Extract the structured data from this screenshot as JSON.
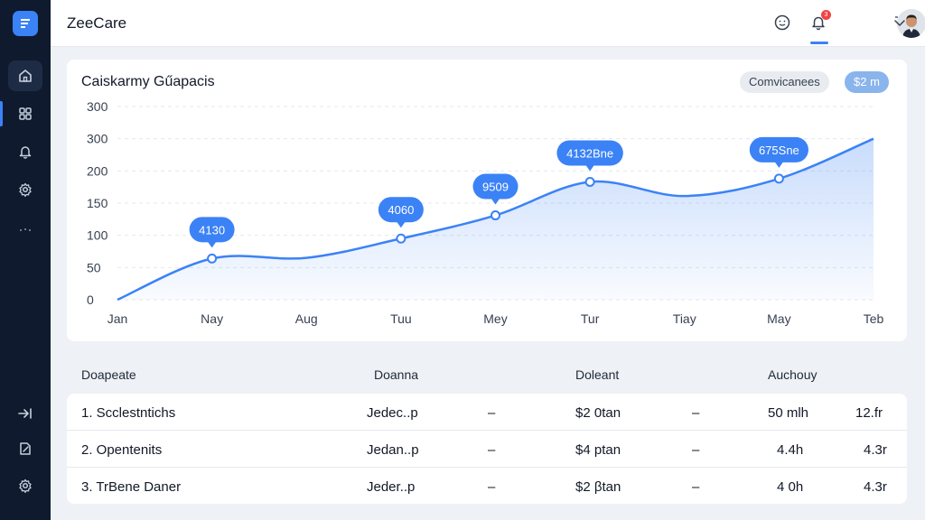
{
  "app": {
    "title": "ZeeCare"
  },
  "sidebar": {
    "items": [
      {
        "name": "home",
        "icon": "home-icon"
      },
      {
        "name": "apps",
        "icon": "grid-icon"
      },
      {
        "name": "alerts",
        "icon": "bell-icon"
      },
      {
        "name": "settings",
        "icon": "gear-icon"
      },
      {
        "name": "more",
        "icon": "dots-icon"
      },
      {
        "name": "expand",
        "icon": "arrow-right-icon"
      },
      {
        "name": "edit",
        "icon": "edit-icon"
      },
      {
        "name": "preferences",
        "icon": "gear-icon"
      }
    ]
  },
  "header": {
    "notification_count": "3"
  },
  "chart": {
    "title": "Caiskarmy Gűapacis",
    "compare_label": "Comvicanees",
    "range_label": "$2 m",
    "accent": "#3b82f6"
  },
  "chart_data": {
    "type": "area",
    "categories": [
      "Jan",
      "Nay",
      "Aug",
      "Tuu",
      "Mey",
      "Tur",
      "Tiay",
      "May",
      "Teb"
    ],
    "values": [
      0,
      64,
      65,
      95,
      131,
      183,
      161,
      188,
      250
    ],
    "y_ticks": [
      "300",
      "300",
      "200",
      "150",
      "100",
      "50",
      "0"
    ],
    "annotations": [
      "4130",
      "4060",
      "9509",
      "4132Bne",
      "675Sne"
    ],
    "grid": true
  },
  "table": {
    "headers": [
      "Doapeate",
      "Doanna",
      "Doleant",
      "Auchouy"
    ],
    "rows": [
      {
        "name": "1. Scclestntichs",
        "domain": "Jedec..p",
        "dash1": "–",
        "amount": "$2 0tan",
        "dash2": "–",
        "metric": "50 mlh",
        "extra": "12.fr"
      },
      {
        "name": "2. Opentenits",
        "domain": "Jedan..p",
        "dash1": "–",
        "amount": "$4 ptan",
        "dash2": "–",
        "metric": "4.4h",
        "extra": "4.3r"
      },
      {
        "name": "3. TrBene Daner",
        "domain": "Jeder..p",
        "dash1": "–",
        "amount": "$2 βtan",
        "dash2": "–",
        "metric": "4 0h",
        "extra": "4.3r"
      }
    ]
  }
}
